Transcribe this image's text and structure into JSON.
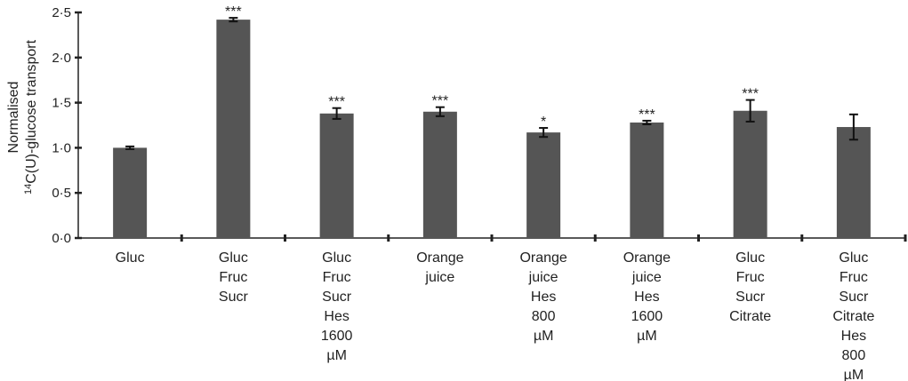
{
  "chart_data": {
    "type": "bar",
    "ylabel_line1": "Normalised",
    "ylabel_sup": "14",
    "ylabel_line2": "C(U)-glucose transport",
    "ylim": [
      0,
      2.5
    ],
    "yticks": [
      0,
      0.5,
      1.0,
      1.5,
      2.0,
      2.5
    ],
    "ytick_labels": [
      "0·0",
      "0·5",
      "1·0",
      "1·5",
      "2·0",
      "2·5"
    ],
    "categories": [
      [
        "Gluc"
      ],
      [
        "Gluc",
        "Fruc",
        "Sucr"
      ],
      [
        "Gluc",
        "Fruc",
        "Sucr",
        "Hes",
        "1600",
        "µM"
      ],
      [
        "Orange",
        "juice"
      ],
      [
        "Orange",
        "juice",
        "Hes",
        "800",
        "µM"
      ],
      [
        "Orange",
        "juice",
        "Hes",
        "1600",
        "µM"
      ],
      [
        "Gluc",
        "Fruc",
        "Sucr",
        "Citrate"
      ],
      [
        "Gluc",
        "Fruc",
        "Sucr",
        "Citrate",
        "Hes",
        "800",
        "µM"
      ]
    ],
    "values": [
      1.0,
      2.42,
      1.38,
      1.4,
      1.17,
      1.28,
      1.41,
      1.23
    ],
    "errors": [
      0.015,
      0.02,
      0.06,
      0.05,
      0.05,
      0.02,
      0.12,
      0.14
    ],
    "significance": [
      "",
      "***",
      "***",
      "***",
      "*",
      "***",
      "***",
      ""
    ],
    "bar_color": "#555555",
    "grid": false
  }
}
